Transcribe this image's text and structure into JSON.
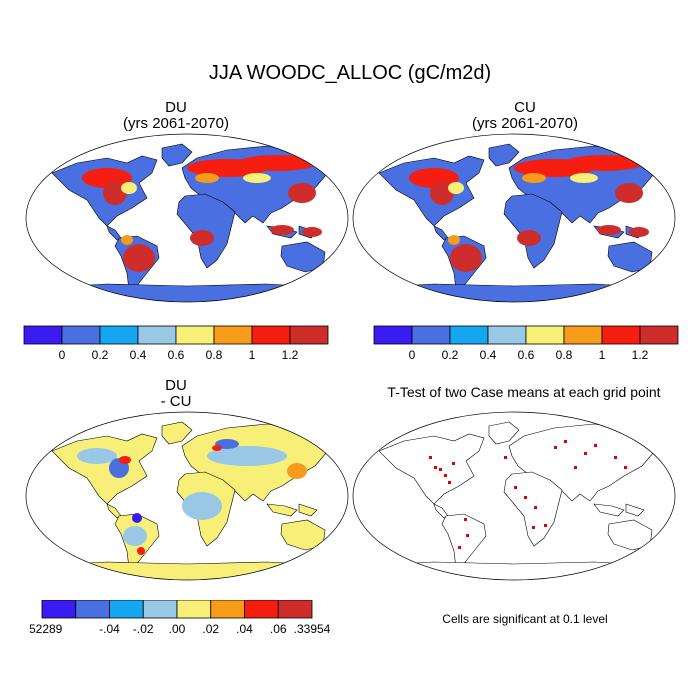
{
  "title": "JJA WOODC_ALLOC (gC/m2d)",
  "panels": [
    {
      "id": "du",
      "line1": "DU",
      "line2": "(yrs 2061-2070)"
    },
    {
      "id": "cu",
      "line1": "CU",
      "line2": "(yrs 2061-2070)"
    },
    {
      "id": "diff",
      "line1": "DU",
      "line2": "- CU"
    },
    {
      "id": "ttest",
      "line1": "T-Test of two Case means at each grid point"
    }
  ],
  "colorbars": {
    "main": {
      "colors": [
        "#3a1cf2",
        "#4a6fe0",
        "#14a6ee",
        "#98c8e6",
        "#f7ef78",
        "#f79c1a",
        "#f51e10",
        "#cf2c2c"
      ],
      "labels": [
        "0",
        "0.2",
        "0.4",
        "0.6",
        "0.8",
        "1",
        "1.2"
      ]
    },
    "diff": {
      "colors": [
        "#3a1cf2",
        "#4a6fe0",
        "#14a6ee",
        "#98c8e6",
        "#f7ef78",
        "#f79c1a",
        "#f51e10",
        "#cf2c2c"
      ],
      "labels": [
        "-.52289",
        "-.04",
        "-.02",
        ".00",
        ".02",
        ".04",
        ".06",
        ".33954"
      ]
    }
  },
  "note": "Cells are significant at 0.1 level"
}
